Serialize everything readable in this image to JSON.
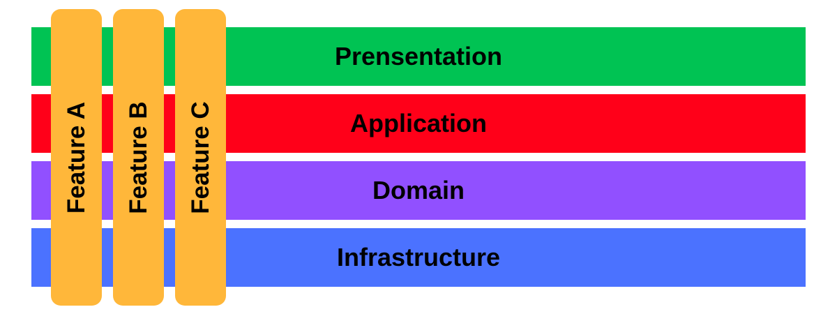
{
  "layers": [
    {
      "label": "Prensentation",
      "color": "#00c353"
    },
    {
      "label": "Application",
      "color": "#ff0019"
    },
    {
      "label": "Domain",
      "color": "#9150ff"
    },
    {
      "label": "Infrastructure",
      "color": "#4b72ff"
    }
  ],
  "features": [
    {
      "label": "Feature A",
      "color": "#ffb73a"
    },
    {
      "label": "Feature B",
      "color": "#ffb73a"
    },
    {
      "label": "Feature C",
      "color": "#ffb73a"
    }
  ]
}
